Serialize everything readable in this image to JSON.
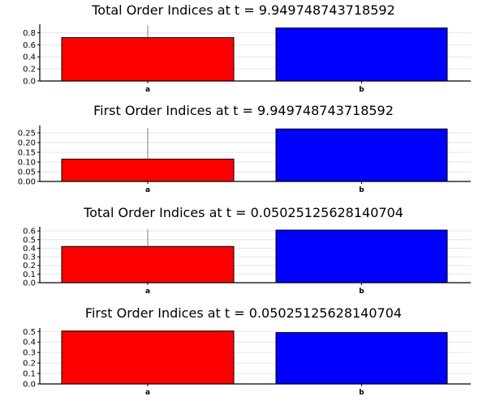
{
  "chart_data": [
    {
      "type": "bar",
      "title": "Total Order Indices at t = 9.949748743718592",
      "categories": [
        "a",
        "b"
      ],
      "values": [
        0.72,
        0.88
      ],
      "colors": [
        "#ff0000",
        "#0000ff"
      ],
      "error_upper": [
        0.92,
        null
      ],
      "ylim": [
        0,
        0.9
      ],
      "yticks": [
        0.0,
        0.2,
        0.4,
        0.6,
        0.8
      ],
      "ytick_labels": [
        "0.0",
        "0.2",
        "0.4",
        "0.6",
        "0.8"
      ],
      "xlabel": "",
      "ylabel": "",
      "grid": true
    },
    {
      "type": "bar",
      "title": "First Order Indices at t = 9.949748743718592",
      "categories": [
        "a",
        "b"
      ],
      "values": [
        0.115,
        0.27
      ],
      "colors": [
        "#ff0000",
        "#0000ff"
      ],
      "error_upper": [
        0.275,
        null
      ],
      "ylim": [
        0,
        0.275
      ],
      "yticks": [
        0.0,
        0.05,
        0.1,
        0.15,
        0.2,
        0.25
      ],
      "ytick_labels": [
        "0.00",
        "0.05",
        "0.10",
        "0.15",
        "0.20",
        "0.25"
      ],
      "xlabel": "",
      "ylabel": "",
      "grid": true
    },
    {
      "type": "bar",
      "title": "Total Order Indices at t = 0.05025125628140704",
      "categories": [
        "a",
        "b"
      ],
      "values": [
        0.42,
        0.61
      ],
      "colors": [
        "#ff0000",
        "#0000ff"
      ],
      "error_upper": [
        0.62,
        null
      ],
      "ylim": [
        0,
        0.62
      ],
      "yticks": [
        0.0,
        0.1,
        0.2,
        0.3,
        0.4,
        0.5,
        0.6
      ],
      "ytick_labels": [
        "0.0",
        "0.1",
        "0.2",
        "0.3",
        "0.4",
        "0.5",
        "0.6"
      ],
      "xlabel": "",
      "ylabel": "",
      "grid": true
    },
    {
      "type": "bar",
      "title": "First Order Indices at t = 0.05025125628140704",
      "categories": [
        "a",
        "b"
      ],
      "values": [
        0.505,
        0.49
      ],
      "colors": [
        "#ff0000",
        "#0000ff"
      ],
      "error_upper": [
        null,
        null
      ],
      "ylim": [
        0,
        0.51
      ],
      "yticks": [
        0.0,
        0.1,
        0.2,
        0.3,
        0.4,
        0.5
      ],
      "ytick_labels": [
        "0.0",
        "0.1",
        "0.2",
        "0.3",
        "0.4",
        "0.5"
      ],
      "xlabel": "",
      "ylabel": "",
      "grid": true
    }
  ]
}
